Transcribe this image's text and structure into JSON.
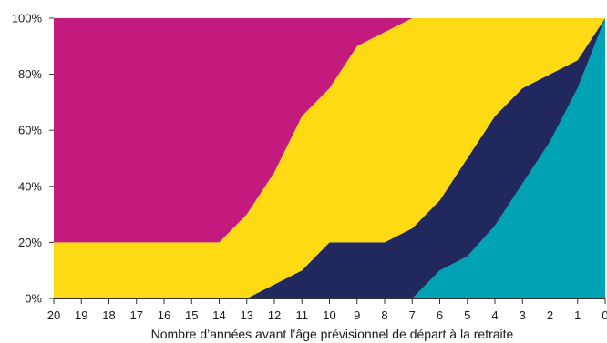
{
  "chart_data": {
    "type": "area",
    "stacked": true,
    "title": "",
    "xlabel": "Nombre d’années avant l’âge prévisionnel de départ à la retraite",
    "ylabel": "",
    "x": [
      20,
      19,
      18,
      17,
      16,
      15,
      14,
      13,
      12,
      11,
      10,
      9,
      8,
      7,
      6,
      5,
      4,
      3,
      2,
      1,
      0
    ],
    "x_direction": "descending",
    "ylim": [
      0,
      100
    ],
    "y_ticks": [
      "0%",
      "20%",
      "40%",
      "60%",
      "80%",
      "100%"
    ],
    "grid": false,
    "legend": "none",
    "series": [
      {
        "color": "#00A3B4",
        "values": [
          0,
          0,
          0,
          0,
          0,
          0,
          0,
          0,
          0,
          0,
          0,
          0,
          0,
          0,
          10,
          15,
          26,
          41,
          56,
          75,
          100
        ]
      },
      {
        "color": "#20285E",
        "values": [
          0,
          0,
          0,
          0,
          0,
          0,
          0,
          0,
          5,
          10,
          20,
          20,
          20,
          25,
          25,
          35,
          39,
          34,
          24,
          10,
          0
        ]
      },
      {
        "color": "#FDDA14",
        "values": [
          20,
          20,
          20,
          20,
          20,
          20,
          20,
          30,
          40,
          55,
          55,
          70,
          75,
          75,
          65,
          50,
          35,
          25,
          20,
          15,
          0
        ]
      },
      {
        "color": "#C21A7D",
        "values": [
          80,
          80,
          80,
          80,
          80,
          80,
          80,
          70,
          55,
          35,
          25,
          10,
          5,
          0,
          0,
          0,
          0,
          0,
          0,
          0,
          0
        ]
      }
    ]
  }
}
